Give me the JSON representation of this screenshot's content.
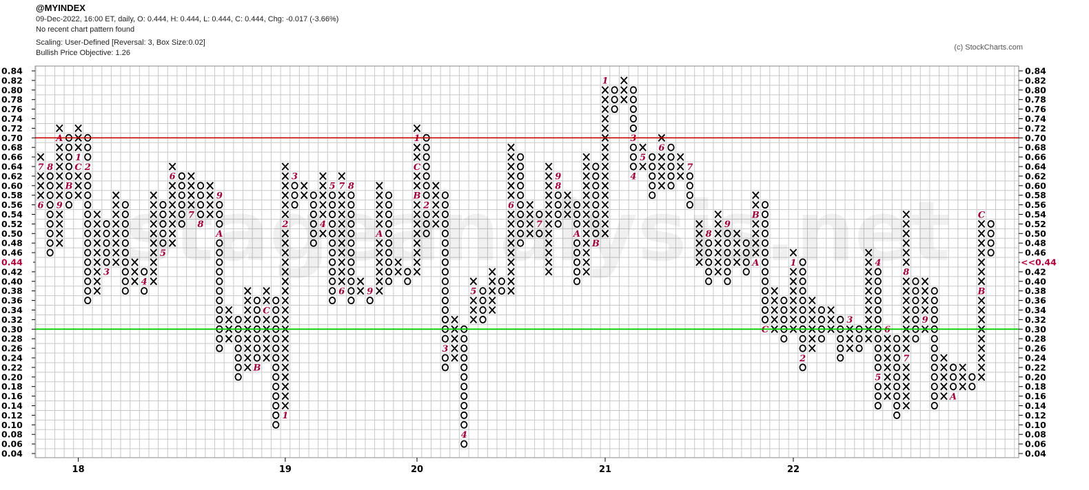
{
  "header": {
    "symbol": "@MYINDEX",
    "quote_line": "09-Dec-2022, 16:00 ET, daily, O: 0.444, H: 0.444, L: 0.444, C: 0.444, Chg: -0.017 (-3.66%)",
    "pattern_line": "No recent chart pattern found",
    "scaling_line": "Scaling: User-Defined [Reversal: 3, Box Size:0.02]",
    "objective_line": "Bullish Price Objective: 1.26"
  },
  "credit": "(c) StockCharts.com",
  "chart_data": {
    "type": "point-and-figure",
    "box_size": 0.02,
    "reversal": 3,
    "ylim": [
      0.04,
      0.84
    ],
    "y_ticks": [
      "0.84",
      "0.82",
      "0.80",
      "0.78",
      "0.76",
      "0.74",
      "0.72",
      "0.70",
      "0.68",
      "0.66",
      "0.64",
      "0.62",
      "0.60",
      "0.58",
      "0.56",
      "0.54",
      "0.52",
      "0.50",
      "0.48",
      "0.46",
      "0.44",
      "0.42",
      "0.40",
      "0.38",
      "0.36",
      "0.34",
      "0.32",
      "0.30",
      "0.28",
      "0.26",
      "0.24",
      "0.22",
      "0.20",
      "0.18",
      "0.16",
      "0.14",
      "0.12",
      "0.10",
      "0.08",
      "0.06",
      "0.04"
    ],
    "year_labels": [
      {
        "column": 4,
        "label": "18"
      },
      {
        "column": 26,
        "label": "19"
      },
      {
        "column": 40,
        "label": "20"
      },
      {
        "column": 60,
        "label": "21"
      },
      {
        "column": 80,
        "label": "22"
      }
    ],
    "current_price": "0.44",
    "current_price_marker": "<<0.44",
    "colors": {
      "x": "#000000",
      "o": "#000000",
      "month": "#a0003c",
      "resistance": "#cc0000",
      "support": "#00cc00",
      "grid": "#c8c8c8",
      "price": "#b3003c"
    },
    "resistance_level": 0.7,
    "support_level": 0.3,
    "columns": [
      {
        "t": "X",
        "lo": 0.56,
        "hi": 0.66,
        "m": [
          [
            0.56,
            "6"
          ],
          [
            0.64,
            "7"
          ]
        ]
      },
      {
        "t": "O",
        "lo": 0.46,
        "hi": 0.64,
        "m": [
          [
            0.64,
            "8"
          ]
        ]
      },
      {
        "t": "X",
        "lo": 0.48,
        "hi": 0.72,
        "m": [
          [
            0.56,
            "9"
          ],
          [
            0.7,
            "A"
          ]
        ]
      },
      {
        "t": "O",
        "lo": 0.56,
        "hi": 0.7,
        "m": [
          [
            0.6,
            "B"
          ]
        ]
      },
      {
        "t": "X",
        "lo": 0.58,
        "hi": 0.72,
        "m": [
          [
            0.64,
            "C"
          ],
          [
            0.66,
            "1"
          ]
        ]
      },
      {
        "t": "O",
        "lo": 0.36,
        "hi": 0.7,
        "m": [
          [
            0.64,
            "2"
          ]
        ]
      },
      {
        "t": "X",
        "lo": 0.38,
        "hi": 0.54,
        "m": []
      },
      {
        "t": "O",
        "lo": 0.42,
        "hi": 0.52,
        "m": [
          [
            0.42,
            "3"
          ]
        ]
      },
      {
        "t": "X",
        "lo": 0.44,
        "hi": 0.58,
        "m": []
      },
      {
        "t": "O",
        "lo": 0.38,
        "hi": 0.56,
        "m": []
      },
      {
        "t": "X",
        "lo": 0.4,
        "hi": 0.44,
        "m": []
      },
      {
        "t": "O",
        "lo": 0.38,
        "hi": 0.42,
        "m": [
          [
            0.4,
            "4"
          ]
        ]
      },
      {
        "t": "X",
        "lo": 0.4,
        "hi": 0.58,
        "m": []
      },
      {
        "t": "O",
        "lo": 0.46,
        "hi": 0.56,
        "m": [
          [
            0.46,
            "5"
          ]
        ]
      },
      {
        "t": "X",
        "lo": 0.48,
        "hi": 0.64,
        "m": [
          [
            0.62,
            "6"
          ]
        ]
      },
      {
        "t": "O",
        "lo": 0.52,
        "hi": 0.62,
        "m": []
      },
      {
        "t": "X",
        "lo": 0.54,
        "hi": 0.62,
        "m": [
          [
            0.54,
            "7"
          ]
        ]
      },
      {
        "t": "O",
        "lo": 0.52,
        "hi": 0.6,
        "m": [
          [
            0.52,
            "8"
          ]
        ]
      },
      {
        "t": "X",
        "lo": 0.54,
        "hi": 0.6,
        "m": []
      },
      {
        "t": "O",
        "lo": 0.26,
        "hi": 0.58,
        "m": [
          [
            0.58,
            "9"
          ],
          [
            0.5,
            "A"
          ]
        ]
      },
      {
        "t": "X",
        "lo": 0.28,
        "hi": 0.34,
        "m": []
      },
      {
        "t": "O",
        "lo": 0.2,
        "hi": 0.32,
        "m": []
      },
      {
        "t": "X",
        "lo": 0.22,
        "hi": 0.38,
        "m": []
      },
      {
        "t": "O",
        "lo": 0.22,
        "hi": 0.36,
        "m": [
          [
            0.22,
            "B"
          ]
        ]
      },
      {
        "t": "X",
        "lo": 0.24,
        "hi": 0.38,
        "m": [
          [
            0.34,
            "C"
          ]
        ]
      },
      {
        "t": "O",
        "lo": 0.1,
        "hi": 0.36,
        "m": []
      },
      {
        "t": "X",
        "lo": 0.12,
        "hi": 0.64,
        "m": [
          [
            0.12,
            "1"
          ],
          [
            0.52,
            "2"
          ]
        ]
      },
      {
        "t": "O",
        "lo": 0.56,
        "hi": 0.62,
        "m": [
          [
            0.62,
            "3"
          ]
        ]
      },
      {
        "t": "X",
        "lo": 0.58,
        "hi": 0.6,
        "m": []
      },
      {
        "t": "O",
        "lo": 0.48,
        "hi": 0.58,
        "m": []
      },
      {
        "t": "X",
        "lo": 0.5,
        "hi": 0.62,
        "m": [
          [
            0.52,
            "4"
          ]
        ]
      },
      {
        "t": "O",
        "lo": 0.36,
        "hi": 0.6,
        "m": [
          [
            0.6,
            "5"
          ]
        ]
      },
      {
        "t": "X",
        "lo": 0.38,
        "hi": 0.62,
        "m": [
          [
            0.38,
            "6"
          ],
          [
            0.6,
            "7"
          ]
        ]
      },
      {
        "t": "O",
        "lo": 0.36,
        "hi": 0.6,
        "m": [
          [
            0.6,
            "8"
          ]
        ]
      },
      {
        "t": "X",
        "lo": 0.38,
        "hi": 0.4,
        "m": []
      },
      {
        "t": "O",
        "lo": 0.36,
        "hi": 0.38,
        "m": [
          [
            0.38,
            "9"
          ]
        ]
      },
      {
        "t": "X",
        "lo": 0.38,
        "hi": 0.6,
        "m": [
          [
            0.5,
            "A"
          ]
        ]
      },
      {
        "t": "O",
        "lo": 0.4,
        "hi": 0.58,
        "m": []
      },
      {
        "t": "X",
        "lo": 0.42,
        "hi": 0.44,
        "m": []
      },
      {
        "t": "O",
        "lo": 0.4,
        "hi": 0.42,
        "m": []
      },
      {
        "t": "X",
        "lo": 0.42,
        "hi": 0.72,
        "m": [
          [
            0.58,
            "B"
          ],
          [
            0.64,
            "C"
          ],
          [
            0.7,
            "1"
          ]
        ]
      },
      {
        "t": "O",
        "lo": 0.5,
        "hi": 0.7,
        "m": [
          [
            0.56,
            "2"
          ]
        ]
      },
      {
        "t": "X",
        "lo": 0.52,
        "hi": 0.6,
        "m": []
      },
      {
        "t": "O",
        "lo": 0.22,
        "hi": 0.58,
        "m": [
          [
            0.26,
            "3"
          ]
        ]
      },
      {
        "t": "X",
        "lo": 0.24,
        "hi": 0.32,
        "m": []
      },
      {
        "t": "O",
        "lo": 0.06,
        "hi": 0.3,
        "m": [
          [
            0.08,
            "4"
          ]
        ]
      },
      {
        "t": "X",
        "lo": 0.32,
        "hi": 0.4,
        "m": [
          [
            0.38,
            "5"
          ]
        ]
      },
      {
        "t": "O",
        "lo": 0.32,
        "hi": 0.38,
        "m": []
      },
      {
        "t": "X",
        "lo": 0.34,
        "hi": 0.42,
        "m": []
      },
      {
        "t": "O",
        "lo": 0.38,
        "hi": 0.4,
        "m": []
      },
      {
        "t": "X",
        "lo": 0.38,
        "hi": 0.68,
        "m": [
          [
            0.56,
            "6"
          ]
        ]
      },
      {
        "t": "O",
        "lo": 0.48,
        "hi": 0.66,
        "m": []
      },
      {
        "t": "X",
        "lo": 0.5,
        "hi": 0.56,
        "m": []
      },
      {
        "t": "O",
        "lo": 0.5,
        "hi": 0.54,
        "m": [
          [
            0.52,
            "7"
          ]
        ]
      },
      {
        "t": "X",
        "lo": 0.42,
        "hi": 0.64,
        "m": []
      },
      {
        "t": "O",
        "lo": 0.52,
        "hi": 0.62,
        "m": [
          [
            0.6,
            "8"
          ],
          [
            0.62,
            "9"
          ]
        ]
      },
      {
        "t": "X",
        "lo": 0.54,
        "hi": 0.58,
        "m": []
      },
      {
        "t": "O",
        "lo": 0.4,
        "hi": 0.56,
        "m": [
          [
            0.5,
            "A"
          ]
        ]
      },
      {
        "t": "X",
        "lo": 0.42,
        "hi": 0.66,
        "m": []
      },
      {
        "t": "O",
        "lo": 0.48,
        "hi": 0.64,
        "m": [
          [
            0.48,
            "B"
          ]
        ]
      },
      {
        "t": "X",
        "lo": 0.5,
        "hi": 0.82,
        "m": [
          [
            0.82,
            "1"
          ]
        ]
      },
      {
        "t": "O",
        "lo": 0.76,
        "hi": 0.8,
        "m": []
      },
      {
        "t": "X",
        "lo": 0.78,
        "hi": 0.82,
        "m": [
          [
            0.76,
            "2"
          ]
        ]
      },
      {
        "t": "O",
        "lo": 0.62,
        "hi": 0.8,
        "m": [
          [
            0.7,
            "3"
          ],
          [
            0.62,
            "4"
          ]
        ]
      },
      {
        "t": "X",
        "lo": 0.64,
        "hi": 0.68,
        "m": [
          [
            0.66,
            "5"
          ]
        ]
      },
      {
        "t": "O",
        "lo": 0.58,
        "hi": 0.66,
        "m": []
      },
      {
        "t": "X",
        "lo": 0.6,
        "hi": 0.7,
        "m": [
          [
            0.68,
            "6"
          ]
        ]
      },
      {
        "t": "O",
        "lo": 0.6,
        "hi": 0.68,
        "m": []
      },
      {
        "t": "X",
        "lo": 0.62,
        "hi": 0.66,
        "m": []
      },
      {
        "t": "O",
        "lo": 0.56,
        "hi": 0.64,
        "m": [
          [
            0.64,
            "7"
          ]
        ]
      },
      {
        "t": "X",
        "lo": 0.44,
        "hi": 0.52,
        "m": []
      },
      {
        "t": "O",
        "lo": 0.4,
        "hi": 0.5,
        "m": [
          [
            0.5,
            "8"
          ]
        ]
      },
      {
        "t": "X",
        "lo": 0.42,
        "hi": 0.54,
        "m": []
      },
      {
        "t": "O",
        "lo": 0.4,
        "hi": 0.52,
        "m": [
          [
            0.52,
            "9"
          ]
        ]
      },
      {
        "t": "X",
        "lo": 0.44,
        "hi": 0.5,
        "m": []
      },
      {
        "t": "O",
        "lo": 0.42,
        "hi": 0.48,
        "m": []
      },
      {
        "t": "X",
        "lo": 0.44,
        "hi": 0.58,
        "m": [
          [
            0.44,
            "A"
          ],
          [
            0.54,
            "B"
          ]
        ]
      },
      {
        "t": "O",
        "lo": 0.3,
        "hi": 0.56,
        "m": [
          [
            0.3,
            "C"
          ]
        ]
      },
      {
        "t": "X",
        "lo": 0.3,
        "hi": 0.38,
        "m": []
      },
      {
        "t": "O",
        "lo": 0.28,
        "hi": 0.36,
        "m": []
      },
      {
        "t": "X",
        "lo": 0.3,
        "hi": 0.46,
        "m": [
          [
            0.44,
            "1"
          ]
        ]
      },
      {
        "t": "O",
        "lo": 0.22,
        "hi": 0.44,
        "m": [
          [
            0.24,
            "2"
          ]
        ]
      },
      {
        "t": "X",
        "lo": 0.26,
        "hi": 0.36,
        "m": []
      },
      {
        "t": "O",
        "lo": 0.28,
        "hi": 0.34,
        "m": []
      },
      {
        "t": "X",
        "lo": 0.3,
        "hi": 0.34,
        "m": []
      },
      {
        "t": "O",
        "lo": 0.24,
        "hi": 0.32,
        "m": []
      },
      {
        "t": "X",
        "lo": 0.26,
        "hi": 0.32,
        "m": [
          [
            0.32,
            "3"
          ]
        ]
      },
      {
        "t": "O",
        "lo": 0.26,
        "hi": 0.3,
        "m": []
      },
      {
        "t": "X",
        "lo": 0.28,
        "hi": 0.46,
        "m": []
      },
      {
        "t": "O",
        "lo": 0.14,
        "hi": 0.44,
        "m": [
          [
            0.44,
            "4"
          ],
          [
            0.2,
            "5"
          ]
        ]
      },
      {
        "t": "X",
        "lo": 0.16,
        "hi": 0.3,
        "m": [
          [
            0.3,
            "6"
          ]
        ]
      },
      {
        "t": "O",
        "lo": 0.12,
        "hi": 0.28,
        "m": []
      },
      {
        "t": "X",
        "lo": 0.14,
        "hi": 0.54,
        "m": [
          [
            0.24,
            "7"
          ],
          [
            0.42,
            "8"
          ]
        ]
      },
      {
        "t": "O",
        "lo": 0.28,
        "hi": 0.4,
        "m": []
      },
      {
        "t": "X",
        "lo": 0.3,
        "hi": 0.4,
        "m": [
          [
            0.32,
            "9"
          ]
        ]
      },
      {
        "t": "O",
        "lo": 0.14,
        "hi": 0.38,
        "m": []
      },
      {
        "t": "X",
        "lo": 0.16,
        "hi": 0.24,
        "m": []
      },
      {
        "t": "O",
        "lo": 0.16,
        "hi": 0.22,
        "m": [
          [
            0.16,
            "A"
          ]
        ]
      },
      {
        "t": "X",
        "lo": 0.18,
        "hi": 0.22,
        "m": []
      },
      {
        "t": "O",
        "lo": 0.18,
        "hi": 0.2,
        "m": []
      },
      {
        "t": "X",
        "lo": 0.2,
        "hi": 0.54,
        "m": [
          [
            0.38,
            "B"
          ],
          [
            0.54,
            "C"
          ]
        ]
      },
      {
        "t": "O",
        "lo": 0.46,
        "hi": 0.52,
        "m": []
      }
    ]
  }
}
